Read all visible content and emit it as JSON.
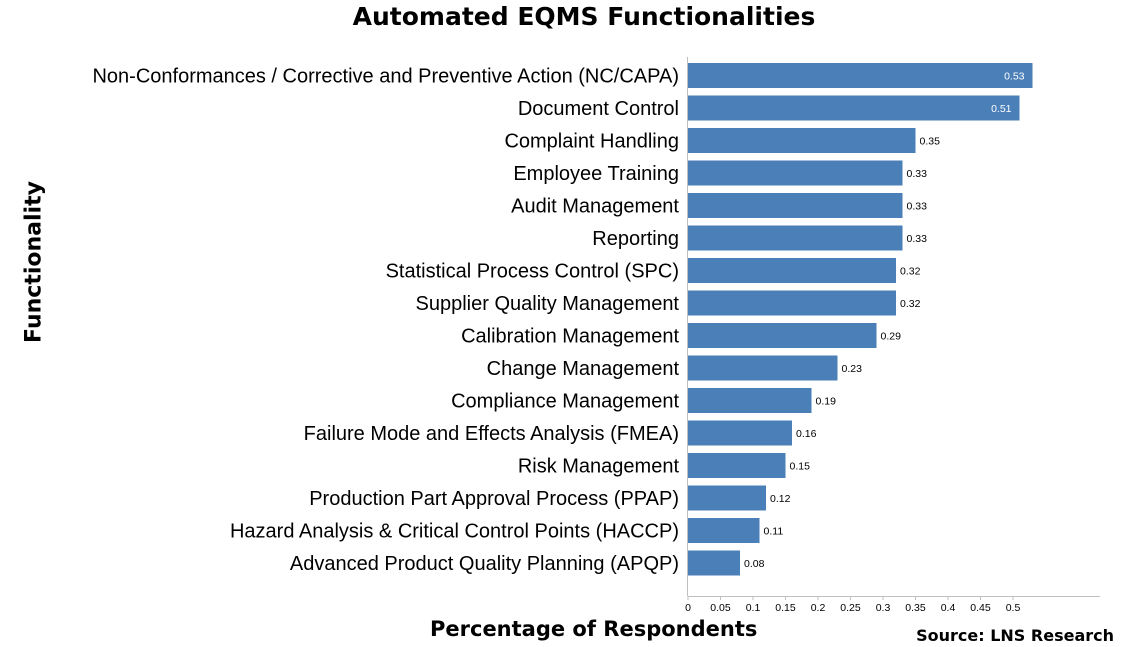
{
  "chart_data": {
    "type": "bar",
    "orientation": "horizontal",
    "title": "Automated EQMS Functionalities",
    "xlabel": "Percentage of Respondents",
    "ylabel": "Functionality",
    "source": "Source: LNS Research",
    "bar_color": "#4a7fb8",
    "xlim": [
      0,
      0.6
    ],
    "xticks": [
      "0",
      "0.05",
      "0.1",
      "0.15",
      "0.2",
      "0.25",
      "0.3",
      "0.35",
      "0.4",
      "0.45",
      "0.5"
    ],
    "grid": false,
    "categories": [
      "Non-Conformances / Corrective and Preventive Action (NC/CAPA)",
      "Document Control",
      "Complaint Handling",
      "Employee Training",
      "Audit Management",
      "Reporting",
      "Statistical Process Control (SPC)",
      "Supplier Quality Management",
      "Calibration Management",
      "Change Management",
      "Compliance Management",
      "Failure Mode and Effects Analysis (FMEA)",
      "Risk Management",
      "Production Part Approval Process (PPAP)",
      "Hazard Analysis & Critical Control Points (HACCP)",
      "Advanced Product Quality Planning (APQP)"
    ],
    "values": [
      0.53,
      0.51,
      0.35,
      0.33,
      0.33,
      0.33,
      0.32,
      0.32,
      0.29,
      0.23,
      0.19,
      0.16,
      0.15,
      0.12,
      0.11,
      0.08
    ]
  }
}
